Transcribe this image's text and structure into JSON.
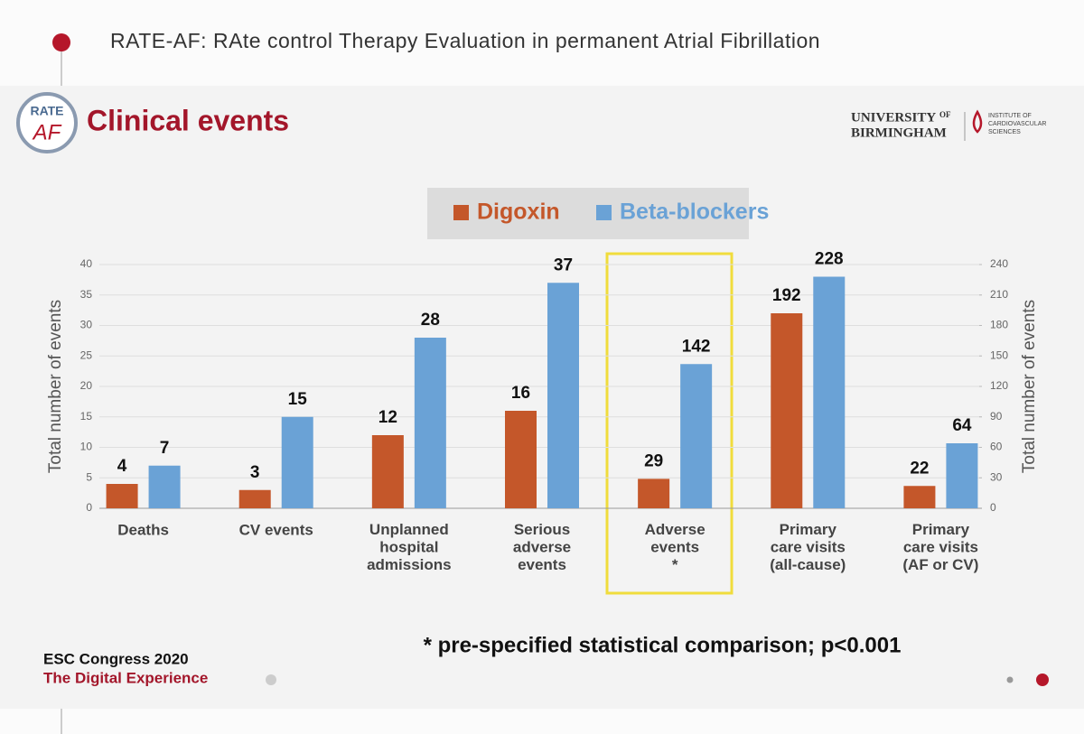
{
  "header": "RATE-AF: RAte control Therapy Evaluation in permanent Atrial Fibrillation",
  "logo": {
    "top": "RATE",
    "bottom": "AF"
  },
  "university": {
    "line1": "UNIVERSITY",
    "of": "OF",
    "line2": "BIRMINGHAM"
  },
  "institute": [
    "INSTITUTE OF",
    "CARDIOVASCULAR",
    "SCIENCES"
  ],
  "footer": {
    "line1": "ESC Congress 2020",
    "line2": "The Digital Experience"
  },
  "chart_data": {
    "type": "bar",
    "title": "Clinical events",
    "categories": [
      "Deaths",
      "CV events",
      "Unplanned\nhospital\nadmissions",
      "Serious\nadverse\nevents",
      "Adverse\nevents\n*",
      "Primary\ncare visits\n(all-cause)",
      "Primary\ncare visits\n(AF or CV)"
    ],
    "category_axis": [
      "y",
      "y",
      "y",
      "y",
      "y2",
      "y2",
      "y2"
    ],
    "series": [
      {
        "name": "Digoxin",
        "color": "#c4572a",
        "values": [
          4,
          3,
          12,
          16,
          29,
          192,
          22
        ]
      },
      {
        "name": "Beta-blockers",
        "color": "#6aa2d6",
        "values": [
          7,
          15,
          28,
          37,
          142,
          228,
          64
        ]
      }
    ],
    "ylabel": "Total number of events",
    "y2label": "Total number of events",
    "ylim": [
      0,
      40
    ],
    "yticks": [
      0,
      5,
      10,
      15,
      20,
      25,
      30,
      35,
      40
    ],
    "y2lim": [
      0,
      240
    ],
    "y2ticks": [
      0,
      30,
      60,
      90,
      120,
      150,
      180,
      210,
      240
    ],
    "grid": true,
    "legend": "top",
    "footnote": "* pre-specified statistical comparison; p<0.001"
  }
}
